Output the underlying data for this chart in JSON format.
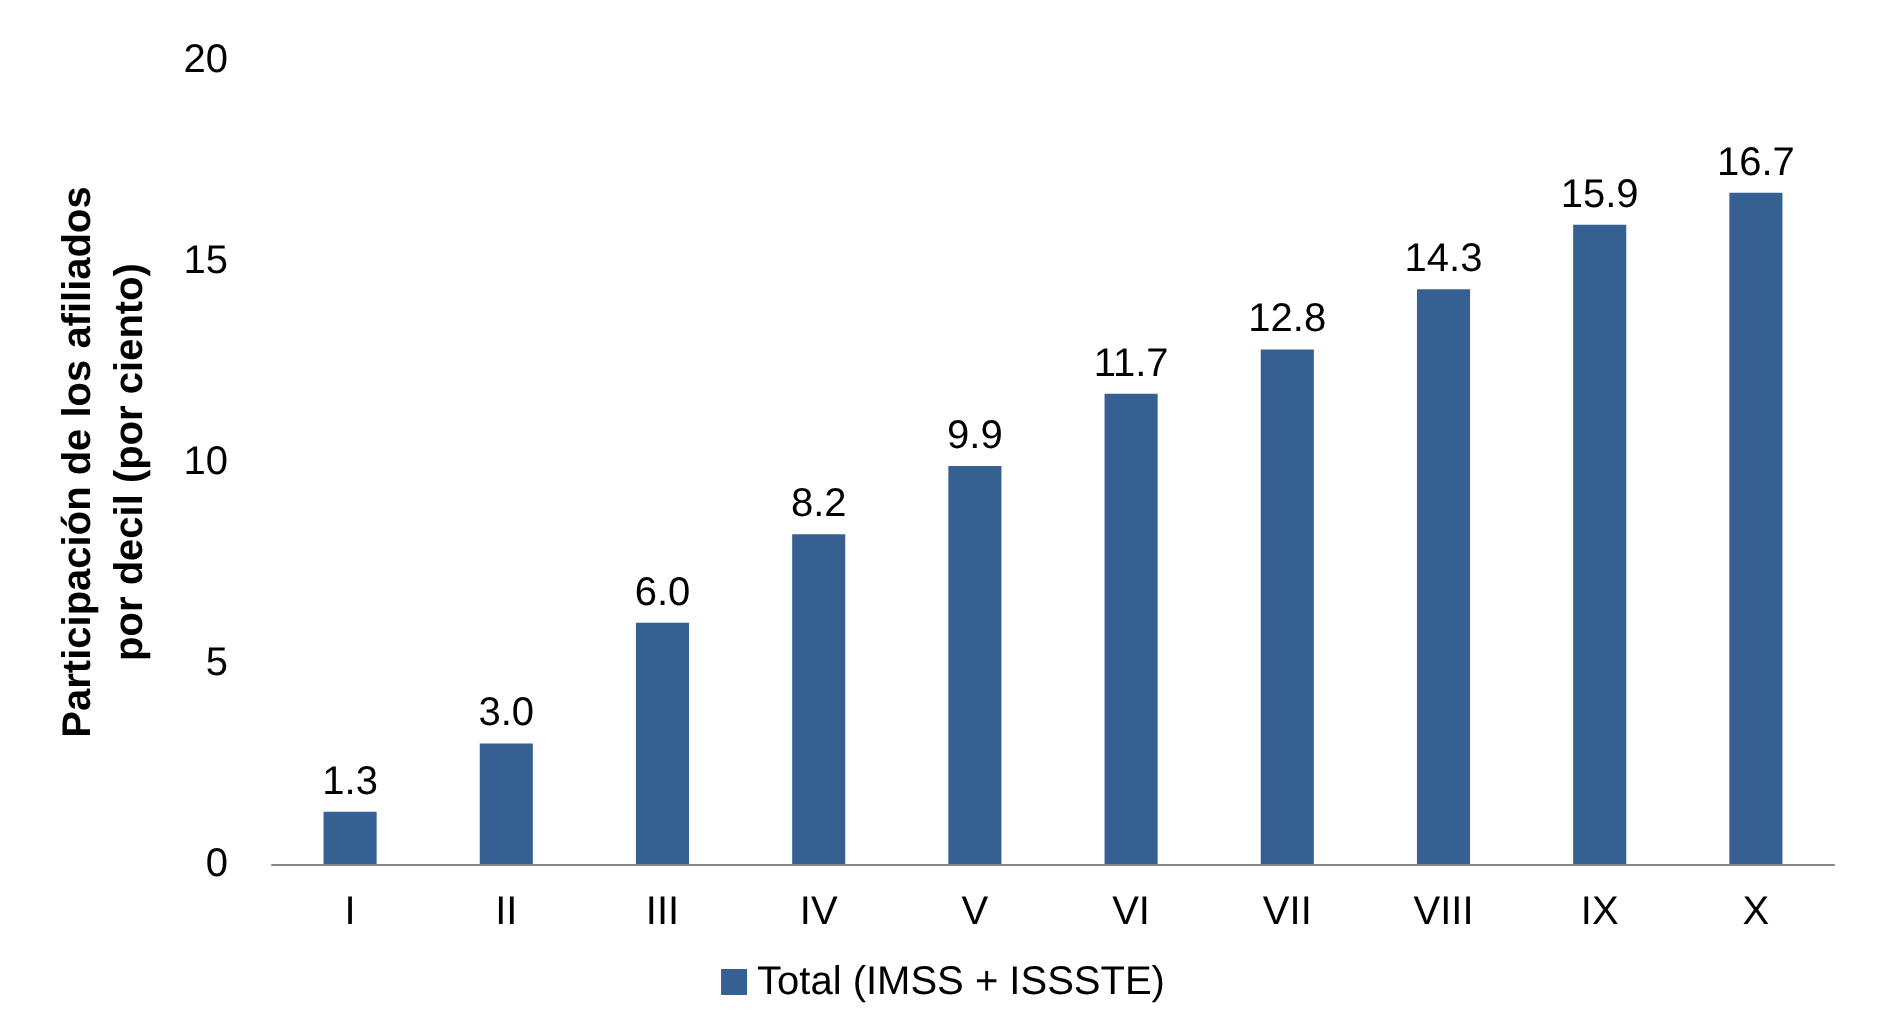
{
  "chart_data": {
    "type": "bar",
    "ylabel": "Participación de los afiliados\npor decil (por ciento)",
    "categories": [
      "I",
      "II",
      "III",
      "IV",
      "V",
      "VI",
      "VII",
      "VIII",
      "IX",
      "X"
    ],
    "series": [
      {
        "name": "Total (IMSS + ISSSTE)",
        "color": "#376092",
        "values": [
          1.3,
          3.0,
          6.0,
          8.2,
          9.9,
          11.7,
          12.8,
          14.3,
          15.9,
          16.7
        ],
        "value_labels": [
          "1.3",
          "3.0",
          "6.0",
          "8.2",
          "9.9",
          "11.7",
          "12.8",
          "14.3",
          "15.9",
          "16.7"
        ]
      }
    ],
    "ylim": [
      0,
      20
    ],
    "yticks": [
      0,
      5,
      10,
      15,
      20
    ],
    "grid": false,
    "legend": "bottom"
  }
}
